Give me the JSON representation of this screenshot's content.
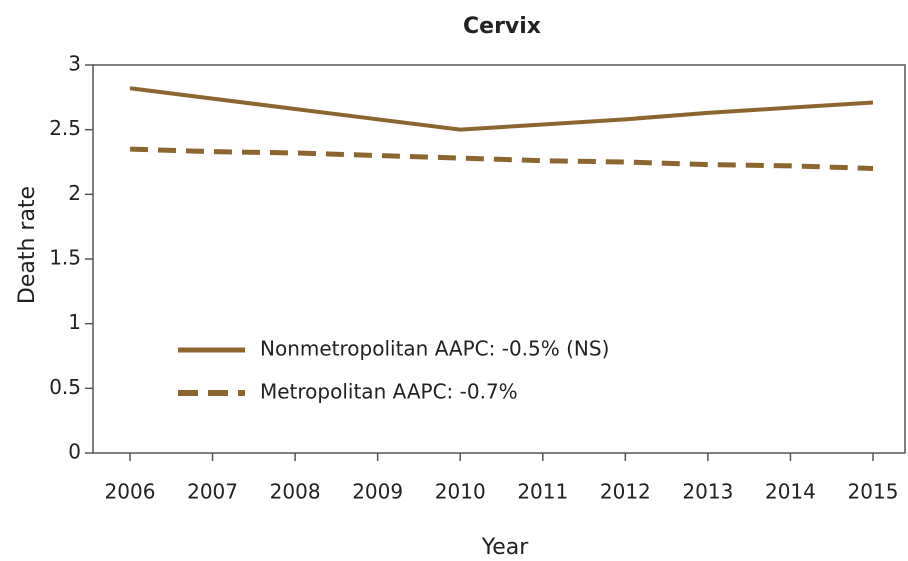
{
  "chart_data": {
    "type": "line",
    "title": "Cervix",
    "x_label": "Year",
    "y_label": "Death rate",
    "categories": [
      "2006",
      "2007",
      "2008",
      "2009",
      "2010",
      "2011",
      "2012",
      "2013",
      "2014",
      "2015"
    ],
    "series": [
      {
        "name": "Nonmetropolitan AAPC: -0.5% (NS)",
        "color": "#8c6630",
        "dashed": false,
        "values": [
          2.82,
          2.74,
          2.66,
          2.58,
          2.5,
          2.54,
          2.58,
          2.63,
          2.67,
          2.71
        ]
      },
      {
        "name": "Metropolitan AAPC: -0.7%",
        "color": "#8c6630",
        "dashed": true,
        "values": [
          2.35,
          2.33,
          2.32,
          2.3,
          2.28,
          2.26,
          2.25,
          2.23,
          2.22,
          2.2
        ]
      }
    ],
    "ylim": [
      0,
      3
    ],
    "yticks": [
      0,
      0.5,
      1,
      1.5,
      2,
      2.5,
      3
    ],
    "grid": false,
    "legend": "lower left"
  }
}
